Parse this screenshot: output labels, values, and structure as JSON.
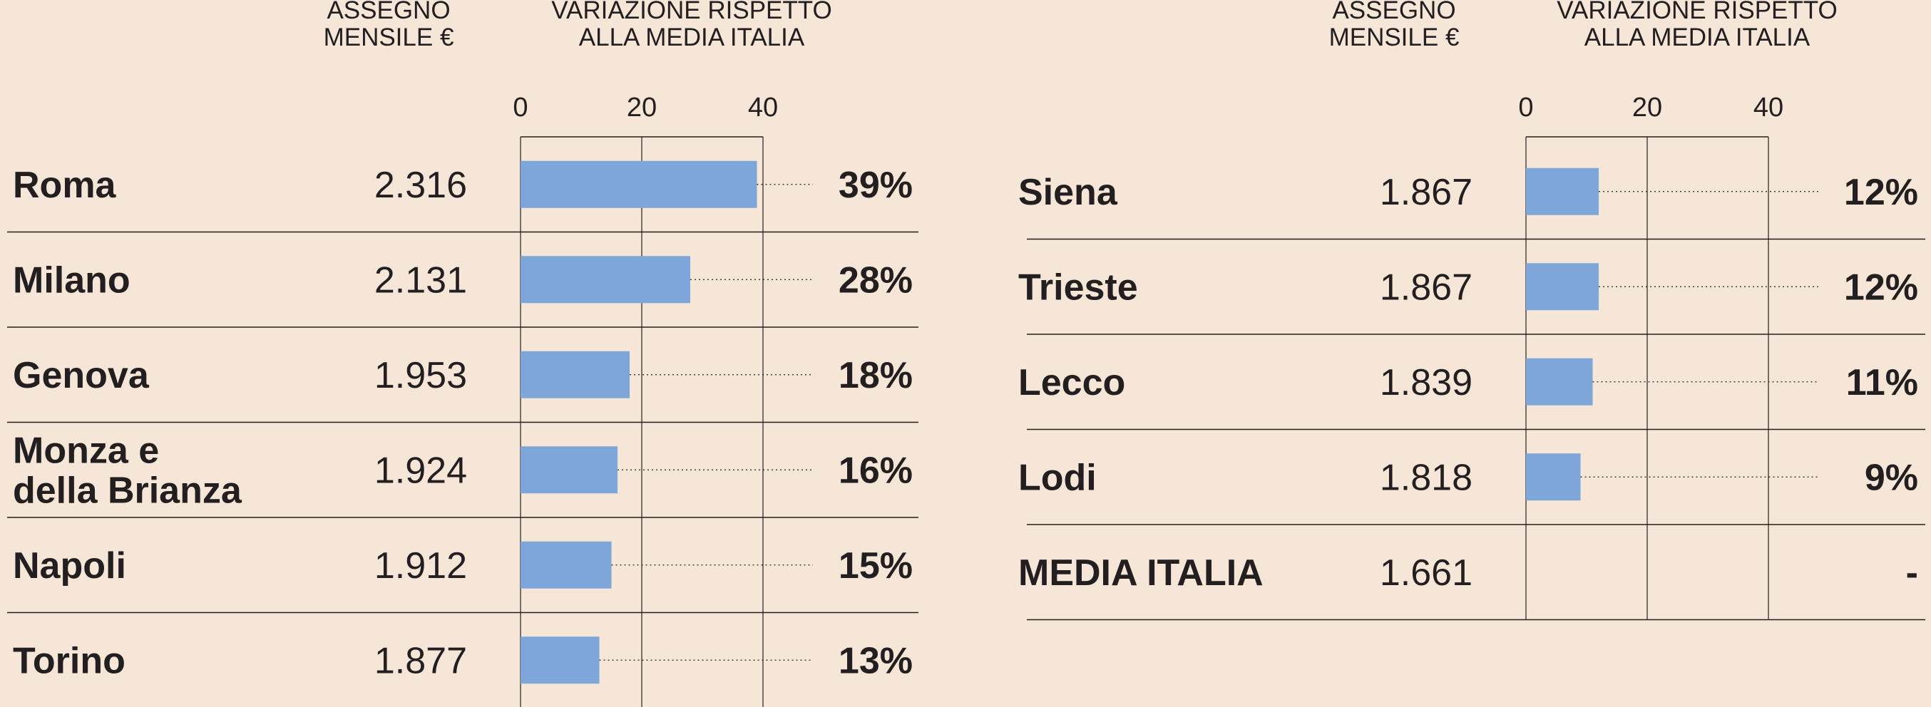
{
  "colors": {
    "background": "#f5e6d8",
    "bar": "#7ea6d8",
    "text": "#231f20",
    "rule": "#231f20"
  },
  "headers": {
    "assegno": [
      "ASSEGNO",
      "MENSILE €"
    ],
    "variazione": [
      "VARIAZIONE RISPETTO",
      "ALLA MEDIA ITALIA"
    ]
  },
  "chart_data": [
    {
      "type": "bar",
      "orientation": "horizontal",
      "columns": [
        "ASSEGNO MENSILE €",
        "VARIAZIONE RISPETTO ALLA MEDIA ITALIA"
      ],
      "xlim": [
        0,
        40
      ],
      "ticks": [
        "0",
        "20",
        "40"
      ],
      "grid": true,
      "rows": [
        {
          "city": [
            "Roma"
          ],
          "assegno": "2.316",
          "value": 39,
          "pct": "39%"
        },
        {
          "city": [
            "Milano"
          ],
          "assegno": "2.131",
          "value": 28,
          "pct": "28%"
        },
        {
          "city": [
            "Genova"
          ],
          "assegno": "1.953",
          "value": 18,
          "pct": "18%"
        },
        {
          "city": [
            "Monza e",
            "della Brianza"
          ],
          "assegno": "1.924",
          "value": 16,
          "pct": "16%"
        },
        {
          "city": [
            "Napoli"
          ],
          "assegno": "1.912",
          "value": 15,
          "pct": "15%"
        },
        {
          "city": [
            "Torino"
          ],
          "assegno": "1.877",
          "value": 13,
          "pct": "13%"
        }
      ]
    },
    {
      "type": "bar",
      "orientation": "horizontal",
      "columns": [
        "ASSEGNO MENSILE €",
        "VARIAZIONE RISPETTO ALLA MEDIA ITALIA"
      ],
      "xlim": [
        0,
        40
      ],
      "ticks": [
        "0",
        "20",
        "40"
      ],
      "grid": true,
      "rows": [
        {
          "city": [
            "Siena"
          ],
          "assegno": "1.867",
          "value": 12,
          "pct": "12%"
        },
        {
          "city": [
            "Trieste"
          ],
          "assegno": "1.867",
          "value": 12,
          "pct": "12%"
        },
        {
          "city": [
            "Lecco"
          ],
          "assegno": "1.839",
          "value": 11,
          "pct": "11%"
        },
        {
          "city": [
            "Lodi"
          ],
          "assegno": "1.818",
          "value": 9,
          "pct": "9%"
        },
        {
          "city": [
            "MEDIA ITALIA"
          ],
          "assegno": "1.661",
          "value": null,
          "pct": "-"
        }
      ]
    }
  ]
}
